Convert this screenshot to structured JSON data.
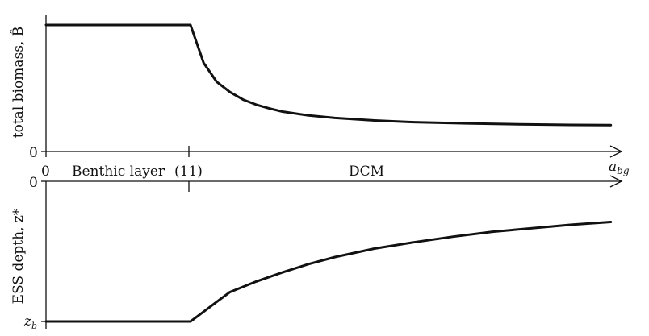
{
  "chart_data": [
    {
      "type": "line",
      "ylabel": "total biomass, B̂",
      "xlabel": "a_bg",
      "xlabel_main": "a",
      "xlabel_sub": "bg",
      "y_tick_labels": [
        "0"
      ],
      "regions": [
        "Benthic layer",
        "DCM"
      ],
      "x_tick_labels": [
        "0",
        "(11)"
      ],
      "series": [
        {
          "values": {
            "x": [
              0,
              11,
              12,
              13,
              14,
              15,
              16,
              17,
              18,
              20,
              22,
              25,
              28,
              32,
              36,
              40,
              43
            ],
            "y": [
              1.0,
              1.0,
              0.7,
              0.55,
              0.47,
              0.41,
              0.37,
              0.34,
              0.315,
              0.285,
              0.265,
              0.245,
              0.232,
              0.222,
              0.215,
              0.21,
              0.208
            ]
          }
        }
      ],
      "xlim": [
        0,
        44
      ],
      "ylim": [
        0,
        1
      ]
    },
    {
      "type": "line",
      "ylabel": "ESS depth, z*",
      "y_tick_labels": [
        "0",
        "z_b"
      ],
      "y_tick_label_main": "z",
      "y_tick_label_sub": "b",
      "series": [
        {
          "values": {
            "x": [
              0,
              11,
              12,
              13,
              14,
              16,
              18,
              20,
              22,
              25,
              28,
              31,
              34,
              37,
              40,
              43
            ],
            "y": [
              1.0,
              1.0,
              0.93,
              0.86,
              0.79,
              0.715,
              0.65,
              0.59,
              0.54,
              0.48,
              0.435,
              0.395,
              0.36,
              0.335,
              0.31,
              0.29
            ]
          }
        }
      ],
      "xlim": [
        0,
        44
      ],
      "ylim": [
        0,
        1
      ],
      "y_inverted": true
    }
  ]
}
